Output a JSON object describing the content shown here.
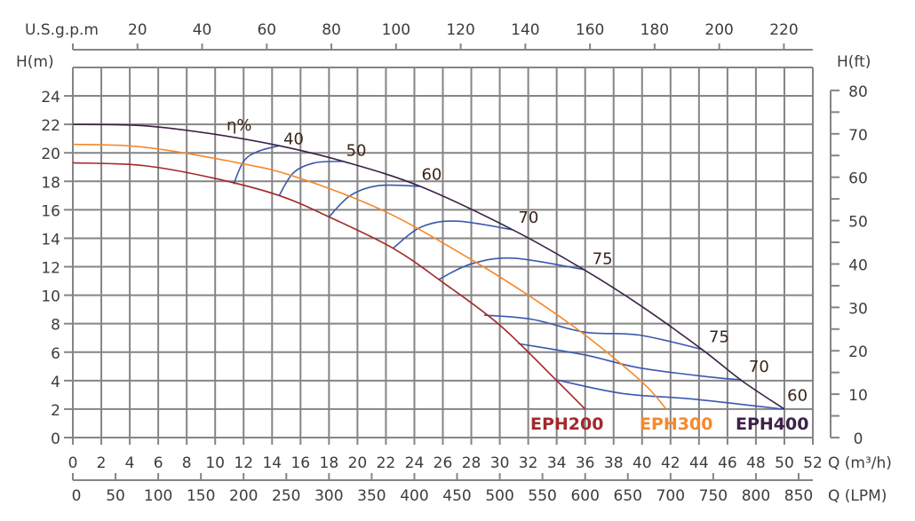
{
  "chart_data": {
    "type": "line",
    "title": "",
    "xlabel": "Q (m³/h)",
    "xlabel_lpm": "Q (LPM)",
    "xlabel_gpm": "U.S.g.p.m",
    "ylabel": "H(m)",
    "ylabel_ft": "H(ft)",
    "xlim": [
      0,
      52
    ],
    "ylim": [
      0,
      26
    ],
    "grid": true,
    "x_ticks": [
      0,
      2,
      4,
      6,
      8,
      10,
      12,
      14,
      16,
      18,
      20,
      22,
      24,
      26,
      28,
      30,
      32,
      34,
      36,
      38,
      40,
      42,
      44,
      46,
      48,
      50,
      52
    ],
    "y_ticks": [
      0,
      2,
      4,
      6,
      8,
      10,
      12,
      14,
      16,
      18,
      20,
      22,
      24
    ],
    "lpm_ticks": [
      0,
      50,
      100,
      150,
      200,
      250,
      300,
      350,
      400,
      450,
      500,
      550,
      600,
      650,
      700,
      750,
      800,
      850
    ],
    "gpm_ticks": [
      20,
      40,
      60,
      80,
      100,
      120,
      140,
      160,
      180,
      200,
      220
    ],
    "ft_ticks": [
      0,
      10,
      20,
      30,
      40,
      50,
      60,
      70,
      80
    ],
    "series": [
      {
        "name": "EPH200",
        "color": "#a3282b",
        "points": [
          [
            0,
            19.3
          ],
          [
            5,
            19.1
          ],
          [
            10,
            18.2
          ],
          [
            14.5,
            17
          ],
          [
            18,
            15.5
          ],
          [
            22.5,
            13.3
          ],
          [
            26,
            10.9
          ],
          [
            30,
            7.9
          ],
          [
            34,
            4
          ],
          [
            36,
            2
          ]
        ]
      },
      {
        "name": "EPH300",
        "color": "#f5892a",
        "points": [
          [
            0,
            20.6
          ],
          [
            5,
            20.4
          ],
          [
            11.6,
            19.3
          ],
          [
            15.7,
            18.3
          ],
          [
            21.9,
            15.9
          ],
          [
            28,
            12.5
          ],
          [
            32,
            10
          ],
          [
            36,
            7.2
          ],
          [
            40,
            3.9
          ],
          [
            41.7,
            2
          ]
        ]
      },
      {
        "name": "EPH400",
        "color": "#3b2147",
        "points": [
          [
            0,
            22
          ],
          [
            5,
            21.9
          ],
          [
            10,
            21.3
          ],
          [
            14.5,
            20.5
          ],
          [
            19,
            19.4
          ],
          [
            24.4,
            17.65
          ],
          [
            30.9,
            14.6
          ],
          [
            35.9,
            11.8
          ],
          [
            40,
            9.2
          ],
          [
            44.2,
            6.2
          ],
          [
            47,
            4
          ],
          [
            50,
            2
          ]
        ]
      }
    ],
    "efficiency_label": "η%",
    "efficiency_color": "#3a58b0",
    "efficiency_curves": [
      {
        "label": "40",
        "label_at": [
          14.8,
          20.6
        ],
        "points": [
          [
            11.3,
            17.8
          ],
          [
            12,
            19.4
          ],
          [
            13,
            20.1
          ],
          [
            14.5,
            20.5
          ]
        ]
      },
      {
        "label": "50",
        "label_at": [
          19.2,
          19.8
        ],
        "points": [
          [
            14.5,
            17
          ],
          [
            15.5,
            18.6
          ],
          [
            17,
            19.3
          ],
          [
            19,
            19.4
          ]
        ]
      },
      {
        "label": "60",
        "label_at": [
          24.5,
          18.1
        ],
        "points": [
          [
            18,
            15.5
          ],
          [
            19.5,
            17
          ],
          [
            21.5,
            17.7
          ],
          [
            24.4,
            17.65
          ]
        ]
      },
      {
        "label": "70",
        "label_at": [
          31.3,
          15.1
        ],
        "points": [
          [
            22.5,
            13.3
          ],
          [
            24.5,
            14.8
          ],
          [
            27,
            15.2
          ],
          [
            30.9,
            14.6
          ]
        ]
      },
      {
        "label": "75",
        "label_at": [
          36.5,
          12.2
        ],
        "points": [
          [
            25.7,
            11.1
          ],
          [
            28,
            12.2
          ],
          [
            31,
            12.6
          ],
          [
            35.9,
            11.8
          ]
        ]
      },
      {
        "label": "75",
        "label_at": [
          44.7,
          6.7
        ],
        "points": [
          [
            28.9,
            8.6
          ],
          [
            32.3,
            8.3
          ],
          [
            36,
            7.4
          ],
          [
            39.8,
            7.2
          ],
          [
            44.2,
            6.2
          ]
        ]
      },
      {
        "label": "70",
        "label_at": [
          47.5,
          4.6
        ],
        "points": [
          [
            31.3,
            6.6
          ],
          [
            36,
            5.8
          ],
          [
            39.8,
            4.9
          ],
          [
            44.8,
            4.25
          ],
          [
            47,
            4.05
          ]
        ]
      },
      {
        "label": "60",
        "label_at": [
          50.2,
          2.6
        ],
        "points": [
          [
            34,
            4.05
          ],
          [
            38.6,
            3.1
          ],
          [
            43.6,
            2.7
          ],
          [
            49.9,
            2
          ]
        ]
      }
    ]
  }
}
